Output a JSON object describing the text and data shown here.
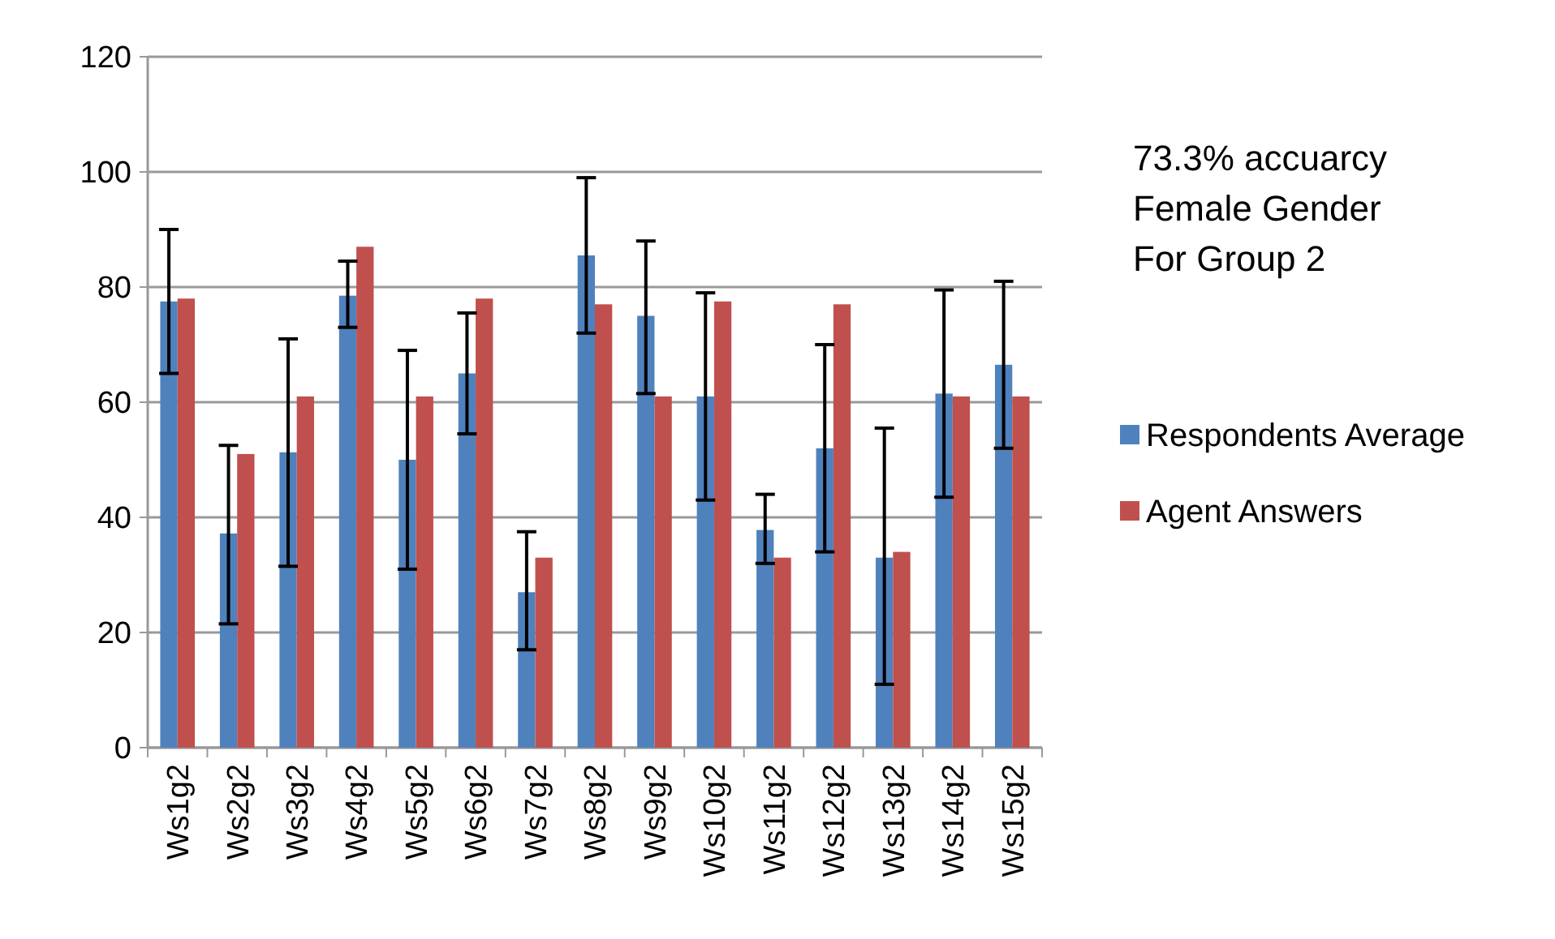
{
  "chart_data": {
    "type": "bar",
    "categories": [
      "Ws1g2",
      "Ws2g2",
      "Ws3g2",
      "Ws4g2",
      "Ws5g2",
      "Ws6g2",
      "Ws7g2",
      "Ws8g2",
      "Ws9g2",
      "Ws10g2",
      "Ws11g2",
      "Ws12g2",
      "Ws13g2",
      "Ws14g2",
      "Ws15g2"
    ],
    "series": [
      {
        "name": "Respondents Average",
        "color": "#4f81bd",
        "values": [
          77.5,
          37.2,
          51.3,
          78.5,
          50,
          65,
          27,
          85.5,
          75,
          61,
          37.8,
          52,
          33,
          61.5,
          66.5
        ],
        "errors": [
          [
            65,
            90
          ],
          [
            21.5,
            52.5
          ],
          [
            31.5,
            71
          ],
          [
            73,
            84.5
          ],
          [
            31,
            69
          ],
          [
            54.5,
            75.5
          ],
          [
            17,
            37.5
          ],
          [
            72,
            99
          ],
          [
            61.5,
            88
          ],
          [
            43,
            79
          ],
          [
            32,
            44
          ],
          [
            34,
            70
          ],
          [
            11,
            55.5
          ],
          [
            43.5,
            79.5
          ],
          [
            52,
            81
          ]
        ]
      },
      {
        "name": "Agent Answers",
        "color": "#c0504d",
        "values": [
          78,
          51,
          61,
          87,
          61,
          78,
          33,
          77,
          61,
          77.5,
          33,
          77,
          34,
          61,
          61
        ]
      }
    ],
    "ylim": [
      0,
      120
    ],
    "yticks": [
      0,
      20,
      40,
      60,
      80,
      100,
      120
    ],
    "grid": "y",
    "legend": "right",
    "annotations": [
      "73.3% accuarcy",
      "Female Gender",
      "For Group 2"
    ]
  }
}
